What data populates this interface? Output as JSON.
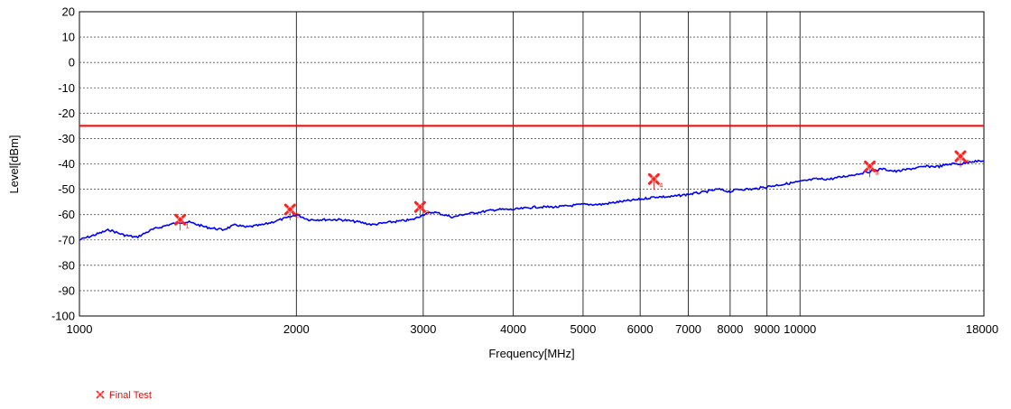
{
  "chart_data": {
    "type": "line",
    "title": "",
    "xlabel": "Frequency[MHz]",
    "ylabel": "Level[dBm]",
    "x_scale": "log",
    "xlim": [
      1000,
      18000
    ],
    "ylim": [
      -100,
      20
    ],
    "grid": true,
    "x_tick_labels": [
      "1000",
      "2000",
      "3000",
      "4000",
      "5000",
      "6000",
      "7000",
      "8000",
      "9000",
      "10000",
      "18000"
    ],
    "x_tick_values": [
      1000,
      2000,
      3000,
      4000,
      5000,
      6000,
      7000,
      8000,
      9000,
      10000,
      18000
    ],
    "y_tick_labels": [
      "20",
      "10",
      "0",
      "-10",
      "-20",
      "-30",
      "-40",
      "-50",
      "-60",
      "-70",
      "-80",
      "-90",
      "-100"
    ],
    "y_tick_values": [
      20,
      10,
      0,
      -10,
      -20,
      -30,
      -40,
      -50,
      -60,
      -70,
      -80,
      -90,
      -100
    ],
    "limit_line": {
      "y": -25,
      "color": "#ff0000"
    },
    "series": [
      {
        "color": "#0000ff",
        "x": [
          1000,
          1050,
          1100,
          1150,
          1200,
          1260,
          1330,
          1380,
          1420,
          1500,
          1580,
          1650,
          1700,
          1800,
          1900,
          1960,
          2000,
          2080,
          2150,
          2300,
          2450,
          2550,
          2700,
          2900,
          3000,
          3100,
          3200,
          3300,
          3400,
          3600,
          3800,
          4000,
          4300,
          4600,
          5000,
          5300,
          5600,
          6000,
          6300,
          6600,
          7000,
          7400,
          7700,
          8000,
          8200,
          8600,
          9000,
          9500,
          10000,
          10500,
          11000,
          11500,
          12000,
          12500,
          13000,
          13600,
          14200,
          15000,
          15600,
          16200,
          16800,
          17200,
          17600,
          18000
        ],
        "y": [
          -70,
          -68,
          -66,
          -68,
          -69,
          -66,
          -64,
          -63,
          -63,
          -65,
          -66,
          -64,
          -65,
          -64,
          -62,
          -61,
          -60,
          -62,
          -62,
          -62,
          -63,
          -64,
          -63,
          -62,
          -60,
          -59,
          -60,
          -61,
          -60,
          -59,
          -58,
          -58,
          -57,
          -57,
          -56,
          -56,
          -55,
          -54,
          -53,
          -53,
          -52,
          -51,
          -50,
          -51,
          -50,
          -50,
          -49,
          -48,
          -47,
          -46,
          -46,
          -45,
          -44,
          -43,
          -42,
          -43,
          -42,
          -41,
          -41,
          -40,
          -40,
          -39,
          -39,
          -39
        ]
      }
    ],
    "legend": {
      "entries": [
        "Final Test"
      ],
      "placement": "bottom-left"
    },
    "markers": [
      {
        "x": 1380,
        "y": -62,
        "label": "1"
      },
      {
        "x": 1960,
        "y": -58,
        "label": "2"
      },
      {
        "x": 2970,
        "y": -57,
        "label": "3"
      },
      {
        "x": 6270,
        "y": -46,
        "label": "4"
      },
      {
        "x": 12500,
        "y": -41,
        "label": "5"
      },
      {
        "x": 16700,
        "y": -37,
        "label": "6"
      }
    ]
  }
}
